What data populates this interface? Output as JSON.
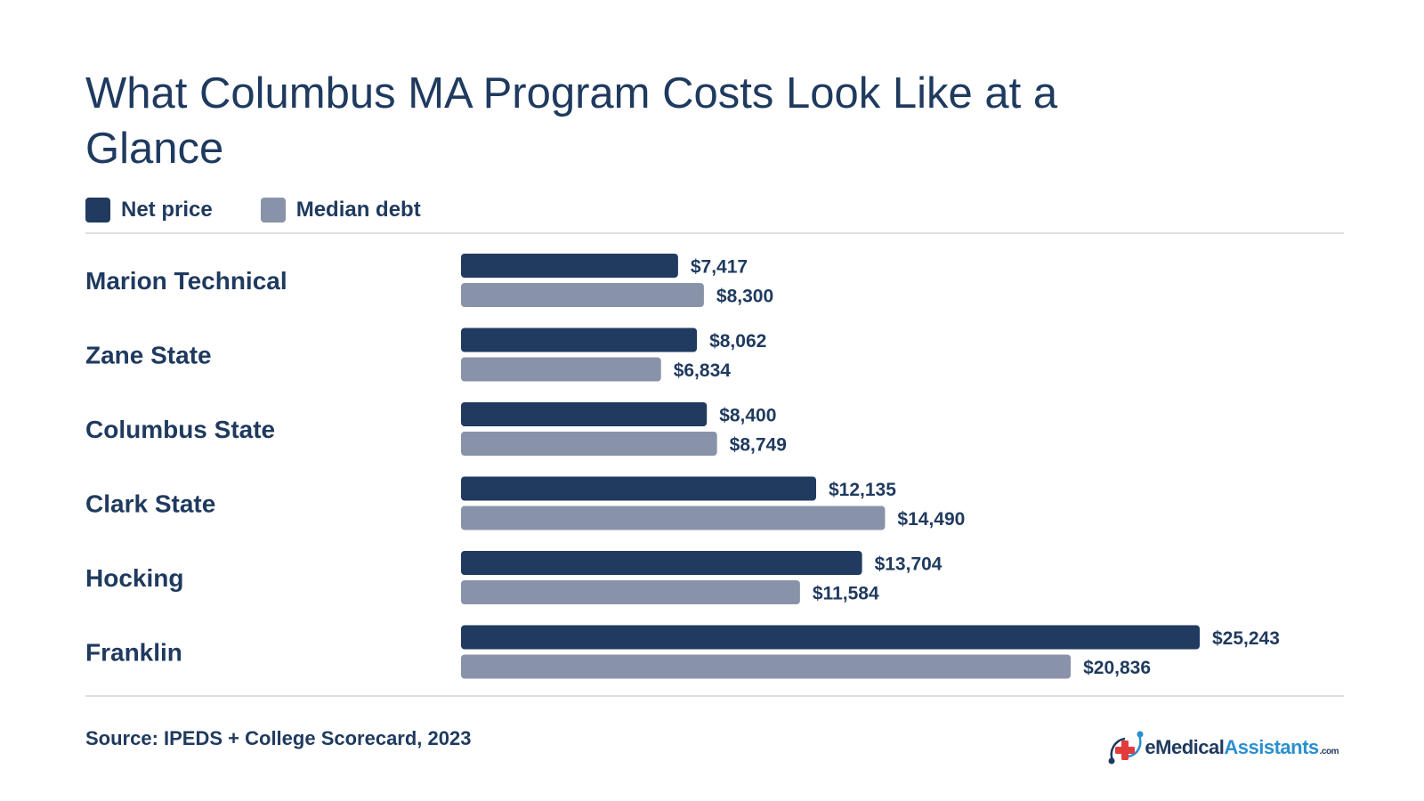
{
  "colors": {
    "net_price": "#203a60",
    "median_debt": "#8893a9",
    "text": "#1f3a5f",
    "accent_red": "#e23b3b",
    "accent_blue": "#2a8fd0"
  },
  "legend": {
    "net_price_label": "Net price",
    "median_debt_label": "Median debt"
  },
  "footer": {
    "source": "Source: IPEDS + College Scorecard, 2023"
  },
  "brand": {
    "icon": "medical-cross-logo-icon",
    "e": "e",
    "medical": "Medical",
    "assistants": "Assistants",
    "com": ".com"
  },
  "chart_data": {
    "type": "bar",
    "orientation": "horizontal",
    "title": "What Columbus MA Program Costs Look Like at a Glance",
    "categories": [
      "Marion Technical",
      "Zane State",
      "Columbus State",
      "Clark State",
      "Hocking",
      "Franklin"
    ],
    "series": [
      {
        "name": "Net price",
        "values": [
          7417,
          8062,
          8400,
          12135,
          13704,
          25243
        ],
        "labels": [
          "$7,417",
          "$8,062",
          "$8,400",
          "$12,135",
          "$13,704",
          "$25,243"
        ]
      },
      {
        "name": "Median debt",
        "values": [
          8300,
          6834,
          8749,
          14490,
          11584,
          20836
        ],
        "labels": [
          "$8,300",
          "$6,834",
          "$8,749",
          "$14,490",
          "$11,584",
          "$20,836"
        ]
      }
    ],
    "xlim": [
      0,
      25243
    ],
    "grid": false,
    "legend_position": "top-left"
  }
}
